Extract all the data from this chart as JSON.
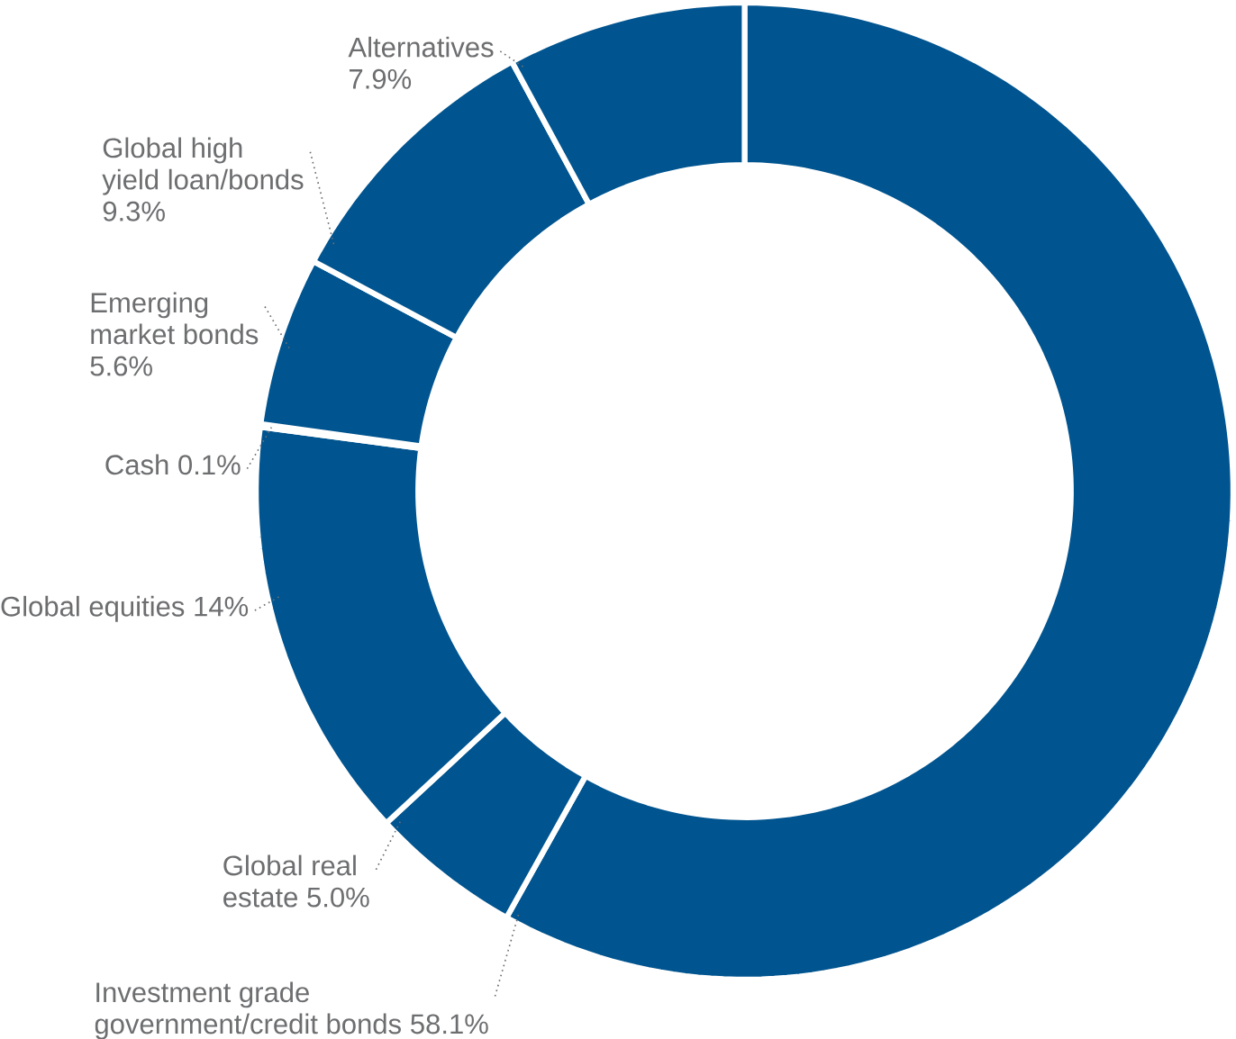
{
  "chart_data": {
    "type": "donut",
    "categories": [
      "Investment grade government/credit bonds",
      "Global real estate",
      "Global equities",
      "Cash",
      "Emerging market bonds",
      "Global high yield loan/bonds",
      "Alternatives"
    ],
    "values": [
      58.1,
      5.0,
      14,
      0.1,
      5.6,
      9.3,
      7.9
    ],
    "value_labels": [
      "58.1%",
      "5.0%",
      "14%",
      "0.1%",
      "5.6%",
      "9.3%",
      "7.9%"
    ],
    "colors": [
      "#00548f",
      "#00548f",
      "#00548f",
      "#00548f",
      "#00548f",
      "#00548f",
      "#00548f"
    ]
  }
}
